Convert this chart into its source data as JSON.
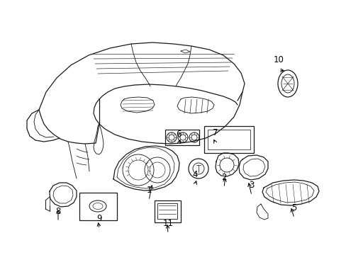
{
  "bg_color": "#ffffff",
  "line_color": "#1a1a1a",
  "label_color": "#000000",
  "fig_width": 4.89,
  "fig_height": 3.6,
  "dpi": 100,
  "font_size": 8.5
}
